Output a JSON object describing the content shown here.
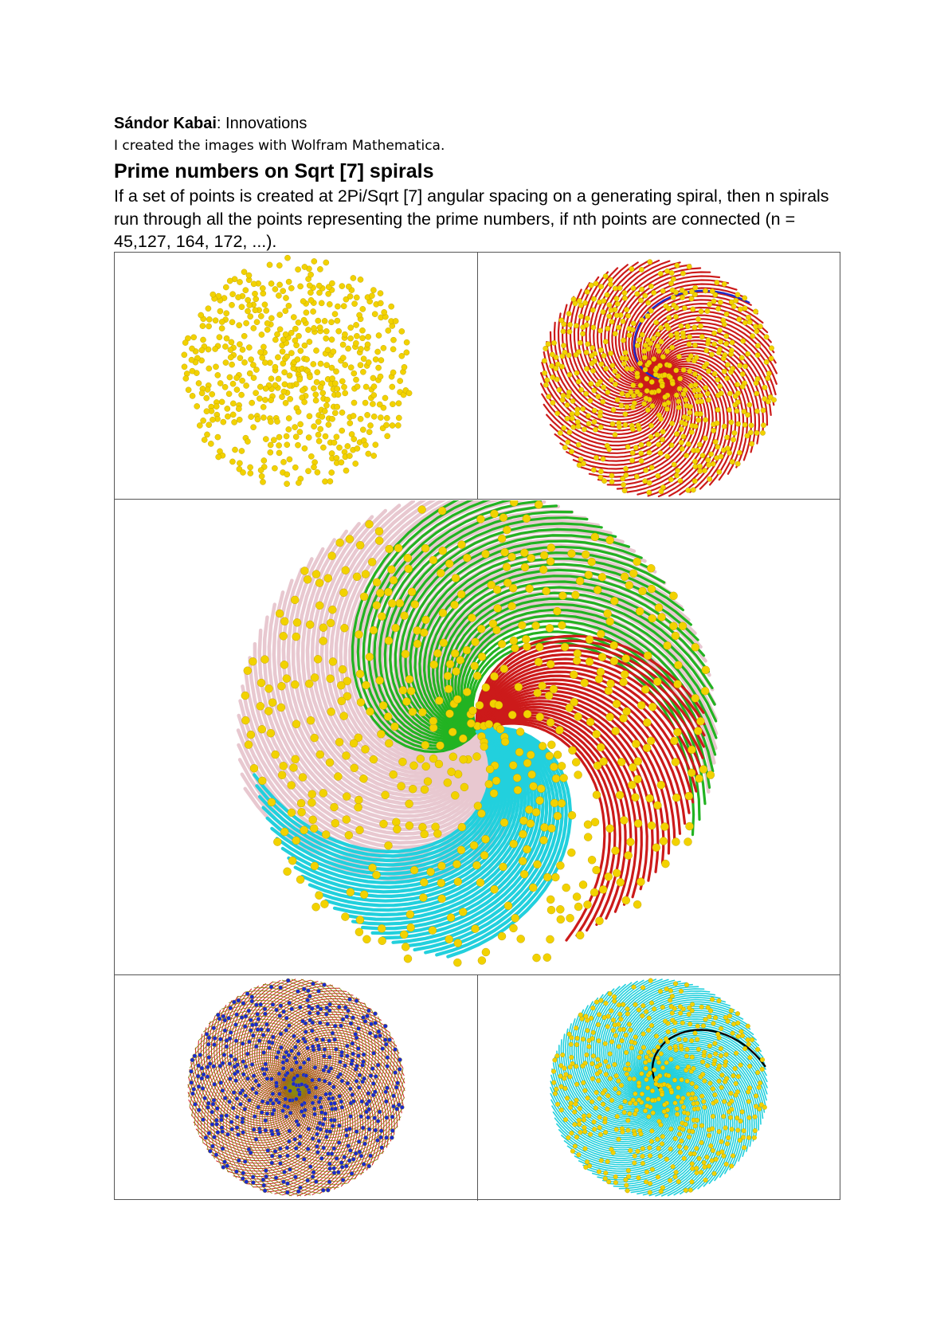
{
  "header": {
    "author": "Sándor Kabai",
    "separator_suffix": ": Innovations",
    "note": "I created the images with Wolfram Mathematica."
  },
  "title": "Prime numbers on Sqrt [7] spirals",
  "description": "If a set of points is created at 2Pi/Sqrt [7] angular spacing on a generating spiral, then n spirals run through all the points representing the prime numbers, if nth points are connected (n = 45,127, 164, 172, ...).",
  "colors": {
    "point_yellow": "#f2d200",
    "spiral_red": "#cc1a1a",
    "spiral_blue": "#1a2acc",
    "spiral_green": "#22b322",
    "spiral_cyan": "#22d0dd",
    "spiral_pink": "#e8c8d0",
    "spiral_olive": "#8a8a10",
    "highlight_black": "#000000",
    "border": "#555555"
  },
  "figures": [
    {
      "id": "fig-1",
      "description_icon": "prime-points-only"
    },
    {
      "id": "fig-2",
      "description_icon": "red-spirals-with-blue-highlight"
    },
    {
      "id": "fig-3",
      "description_icon": "multicolor-spiral-families"
    },
    {
      "id": "fig-4",
      "description_icon": "red-green-blue-dense-spirals"
    },
    {
      "id": "fig-5",
      "description_icon": "cyan-spirals-with-black-highlight"
    }
  ]
}
